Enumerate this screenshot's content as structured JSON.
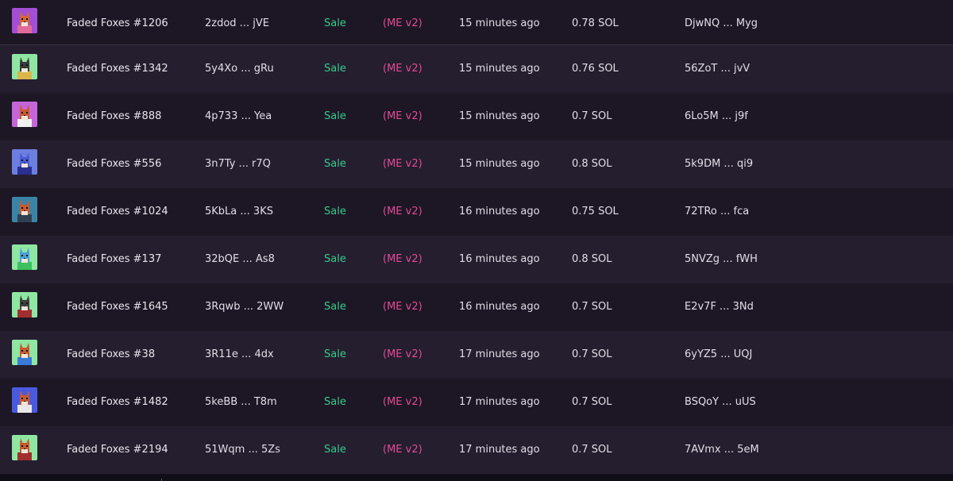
{
  "rows": [
    {
      "name": "Faded Foxes #1206",
      "sig": "2zdod ... jVE",
      "type": "Sale",
      "market": "(ME v2)",
      "time": "15 minutes ago",
      "price": "0.78 SOL",
      "buyer": "DjwNQ ... Myg",
      "bg": "#a24fd6",
      "fox": "#d0683a",
      "shirt": "#e06a9a",
      "thumb_icon": "fox-avatar-icon"
    },
    {
      "name": "Faded Foxes #1342",
      "sig": "5y4Xo ... gRu",
      "type": "Sale",
      "market": "(ME v2)",
      "time": "15 minutes ago",
      "price": "0.76 SOL",
      "buyer": "56ZoT ... jvV",
      "bg": "#8fe6a2",
      "fox": "#3a3a3a",
      "shirt": "#d8b64a",
      "thumb_icon": "fox-avatar-icon"
    },
    {
      "name": "Faded Foxes #888",
      "sig": "4p733 ... Yea",
      "type": "Sale",
      "market": "(ME v2)",
      "time": "15 minutes ago",
      "price": "0.7 SOL",
      "buyer": "6Lo5M ... j9f",
      "bg": "#c665d8",
      "fox": "#c85a30",
      "shirt": "#f0f0f0",
      "thumb_icon": "fox-avatar-icon"
    },
    {
      "name": "Faded Foxes #556",
      "sig": "3n7Ty ... r7Q",
      "type": "Sale",
      "market": "(ME v2)",
      "time": "15 minutes ago",
      "price": "0.8 SOL",
      "buyer": "5k9DM ... qi9",
      "bg": "#6c7fe0",
      "fox": "#4a5ad0",
      "shirt": "#2a3090",
      "thumb_icon": "fox-avatar-icon"
    },
    {
      "name": "Faded Foxes #1024",
      "sig": "5KbLa ... 3KS",
      "type": "Sale",
      "market": "(ME v2)",
      "time": "16 minutes ago",
      "price": "0.75 SOL",
      "buyer": "72TRo ... fca",
      "bg": "#3b84a6",
      "fox": "#c85a30",
      "shirt": "#304050",
      "thumb_icon": "fox-avatar-icon"
    },
    {
      "name": "Faded Foxes #137",
      "sig": "32bQE ... As8",
      "type": "Sale",
      "market": "(ME v2)",
      "time": "16 minutes ago",
      "price": "0.8 SOL",
      "buyer": "5NVZg ... fWH",
      "bg": "#8fe6a2",
      "fox": "#4aa0d8",
      "shirt": "#3cc060",
      "thumb_icon": "fox-avatar-icon"
    },
    {
      "name": "Faded Foxes #1645",
      "sig": "3Rqwb ... 2WW",
      "type": "Sale",
      "market": "(ME v2)",
      "time": "16 minutes ago",
      "price": "0.7 SOL",
      "buyer": "E2v7F ... 3Nd",
      "bg": "#8fe6a2",
      "fox": "#404040",
      "shirt": "#a03030",
      "thumb_icon": "fox-avatar-icon"
    },
    {
      "name": "Faded Foxes #38",
      "sig": "3R11e ... 4dx",
      "type": "Sale",
      "market": "(ME v2)",
      "time": "17 minutes ago",
      "price": "0.7 SOL",
      "buyer": "6yYZ5 ... UQJ",
      "bg": "#8fe6a2",
      "fox": "#c85a30",
      "shirt": "#3a7ad8",
      "thumb_icon": "fox-avatar-icon"
    },
    {
      "name": "Faded Foxes #1482",
      "sig": "5keBB ... T8m",
      "type": "Sale",
      "market": "(ME v2)",
      "time": "17 minutes ago",
      "price": "0.7 SOL",
      "buyer": "BSQoY ... uUS",
      "bg": "#4a5ae0",
      "fox": "#c85a30",
      "shirt": "#e8e8e8",
      "thumb_icon": "fox-avatar-icon"
    },
    {
      "name": "Faded Foxes #2194",
      "sig": "51Wqm ... 5Zs",
      "type": "Sale",
      "market": "(ME v2)",
      "time": "17 minutes ago",
      "price": "0.7 SOL",
      "buyer": "7AVmx ... 5eM",
      "bg": "#8fe6a2",
      "fox": "#c85a30",
      "shirt": "#a03030",
      "thumb_icon": "fox-avatar-icon"
    }
  ]
}
